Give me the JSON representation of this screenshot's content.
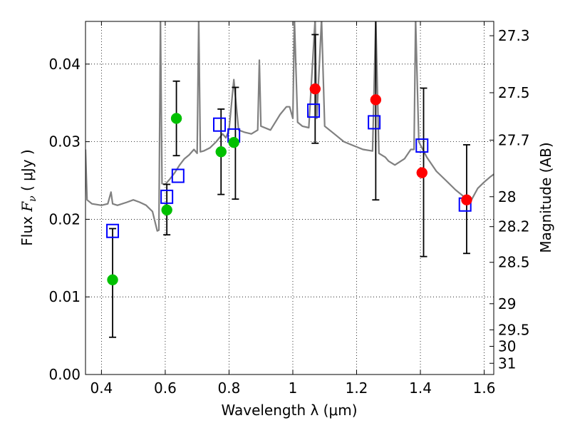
{
  "chart_data": {
    "type": "scatter",
    "xlabel": "Wavelength  λ (μm)",
    "ylabel_left": {
      "prefix": "Flux  ",
      "symbol": "F",
      "subscript": "ν",
      "suffix": "  ( μJy )"
    },
    "ylabel_right": "Magnitude (AB)",
    "xlim": [
      0.35,
      1.63
    ],
    "ylim": [
      0.0,
      0.0455
    ],
    "grid": true,
    "x_ticks": [
      {
        "value": 0.4,
        "label": "0.4"
      },
      {
        "value": 0.6,
        "label": "0.6"
      },
      {
        "value": 0.8,
        "label": "0.8"
      },
      {
        "value": 1.0,
        "label": "1"
      },
      {
        "value": 1.2,
        "label": "1.2"
      },
      {
        "value": 1.4,
        "label": "1.4"
      },
      {
        "value": 1.6,
        "label": "1.6"
      }
    ],
    "y_ticks": [
      {
        "value": 0.0,
        "label": "0.00"
      },
      {
        "value": 0.01,
        "label": "0.01"
      },
      {
        "value": 0.02,
        "label": "0.02"
      },
      {
        "value": 0.03,
        "label": "0.03"
      },
      {
        "value": 0.04,
        "label": "0.04"
      }
    ],
    "right_ticks": [
      {
        "label": "27.3",
        "mag": 27.3
      },
      {
        "label": "27.5",
        "mag": 27.5
      },
      {
        "label": "27.7",
        "mag": 27.7
      },
      {
        "label": "28",
        "mag": 28.0
      },
      {
        "label": "28.2",
        "mag": 28.2
      },
      {
        "label": "28.5",
        "mag": 28.5
      },
      {
        "label": "29",
        "mag": 29.0
      },
      {
        "label": "29.5",
        "mag": 29.5
      },
      {
        "label": "30",
        "mag": 30.0
      },
      {
        "label": "31",
        "mag": 31.0
      }
    ],
    "series": [
      {
        "kind": "line",
        "color": "#808080",
        "points": [
          [
            0.35,
            0.029
          ],
          [
            0.355,
            0.0225
          ],
          [
            0.37,
            0.022
          ],
          [
            0.4,
            0.0218
          ],
          [
            0.42,
            0.022
          ],
          [
            0.43,
            0.0235
          ],
          [
            0.435,
            0.022
          ],
          [
            0.45,
            0.0218
          ],
          [
            0.48,
            0.0222
          ],
          [
            0.5,
            0.0225
          ],
          [
            0.52,
            0.0222
          ],
          [
            0.54,
            0.0218
          ],
          [
            0.56,
            0.021
          ],
          [
            0.575,
            0.0185
          ],
          [
            0.58,
            0.0186
          ],
          [
            0.585,
            0.0458
          ],
          [
            0.59,
            0.0246
          ],
          [
            0.6,
            0.0245
          ],
          [
            0.615,
            0.0252
          ],
          [
            0.63,
            0.026
          ],
          [
            0.645,
            0.027
          ],
          [
            0.66,
            0.0278
          ],
          [
            0.675,
            0.0283
          ],
          [
            0.69,
            0.029
          ],
          [
            0.7,
            0.0285
          ],
          [
            0.705,
            0.0458
          ],
          [
            0.71,
            0.0287
          ],
          [
            0.72,
            0.0288
          ],
          [
            0.74,
            0.0292
          ],
          [
            0.76,
            0.03
          ],
          [
            0.78,
            0.031
          ],
          [
            0.79,
            0.0305
          ],
          [
            0.8,
            0.0315
          ],
          [
            0.815,
            0.038
          ],
          [
            0.83,
            0.0315
          ],
          [
            0.85,
            0.0312
          ],
          [
            0.87,
            0.031
          ],
          [
            0.89,
            0.0315
          ],
          [
            0.895,
            0.0405
          ],
          [
            0.9,
            0.032
          ],
          [
            0.93,
            0.0315
          ],
          [
            0.96,
            0.0335
          ],
          [
            0.98,
            0.0345
          ],
          [
            0.99,
            0.0345
          ],
          [
            1.0,
            0.033
          ],
          [
            1.005,
            0.0458
          ],
          [
            1.015,
            0.0325
          ],
          [
            1.03,
            0.032
          ],
          [
            1.05,
            0.0318
          ],
          [
            1.07,
            0.0458
          ],
          [
            1.075,
            0.033
          ],
          [
            1.09,
            0.0458
          ],
          [
            1.1,
            0.032
          ],
          [
            1.13,
            0.031
          ],
          [
            1.16,
            0.03
          ],
          [
            1.19,
            0.0295
          ],
          [
            1.22,
            0.029
          ],
          [
            1.25,
            0.0288
          ],
          [
            1.26,
            0.0458
          ],
          [
            1.27,
            0.0285
          ],
          [
            1.29,
            0.028
          ],
          [
            1.3,
            0.0275
          ],
          [
            1.32,
            0.027
          ],
          [
            1.35,
            0.0278
          ],
          [
            1.37,
            0.029
          ],
          [
            1.38,
            0.029
          ],
          [
            1.385,
            0.0458
          ],
          [
            1.395,
            0.03
          ],
          [
            1.42,
            0.028
          ],
          [
            1.45,
            0.0262
          ],
          [
            1.48,
            0.025
          ],
          [
            1.51,
            0.0238
          ],
          [
            1.54,
            0.0228
          ],
          [
            1.56,
            0.0225
          ],
          [
            1.58,
            0.024
          ],
          [
            1.6,
            0.0248
          ],
          [
            1.62,
            0.0255
          ],
          [
            1.63,
            0.0258
          ]
        ]
      },
      {
        "kind": "errorbar",
        "color": "#000000",
        "bars": [
          {
            "x": 0.435,
            "lo": 0.0048,
            "hi": 0.0188
          },
          {
            "x": 0.605,
            "lo": 0.018,
            "hi": 0.0245
          },
          {
            "x": 0.635,
            "lo": 0.0282,
            "hi": 0.0378
          },
          {
            "x": 0.775,
            "lo": 0.0232,
            "hi": 0.0342
          },
          {
            "x": 0.82,
            "lo": 0.0226,
            "hi": 0.037
          },
          {
            "x": 1.07,
            "lo": 0.0298,
            "hi": 0.0438
          },
          {
            "x": 1.26,
            "lo": 0.0225,
            "hi": 0.0458
          },
          {
            "x": 1.41,
            "lo": 0.0152,
            "hi": 0.0369
          },
          {
            "x": 1.545,
            "lo": 0.0156,
            "hi": 0.0296
          }
        ]
      },
      {
        "kind": "squares",
        "color": "#0000ff",
        "points": [
          [
            0.435,
            0.0185
          ],
          [
            0.605,
            0.0229
          ],
          [
            0.64,
            0.0256
          ],
          [
            0.77,
            0.0322
          ],
          [
            0.815,
            0.0308
          ],
          [
            1.065,
            0.034
          ],
          [
            1.255,
            0.0325
          ],
          [
            1.405,
            0.0295
          ],
          [
            1.54,
            0.0219
          ]
        ]
      },
      {
        "kind": "circles",
        "color": "#00c000",
        "points": [
          [
            0.435,
            0.0122
          ],
          [
            0.605,
            0.0212
          ],
          [
            0.635,
            0.033
          ],
          [
            0.775,
            0.0287
          ],
          [
            0.815,
            0.0299
          ]
        ]
      },
      {
        "kind": "circles",
        "color": "#ff0000",
        "points": [
          [
            1.07,
            0.0368
          ],
          [
            1.26,
            0.0354
          ],
          [
            1.405,
            0.026
          ],
          [
            1.545,
            0.0225
          ]
        ]
      }
    ]
  }
}
